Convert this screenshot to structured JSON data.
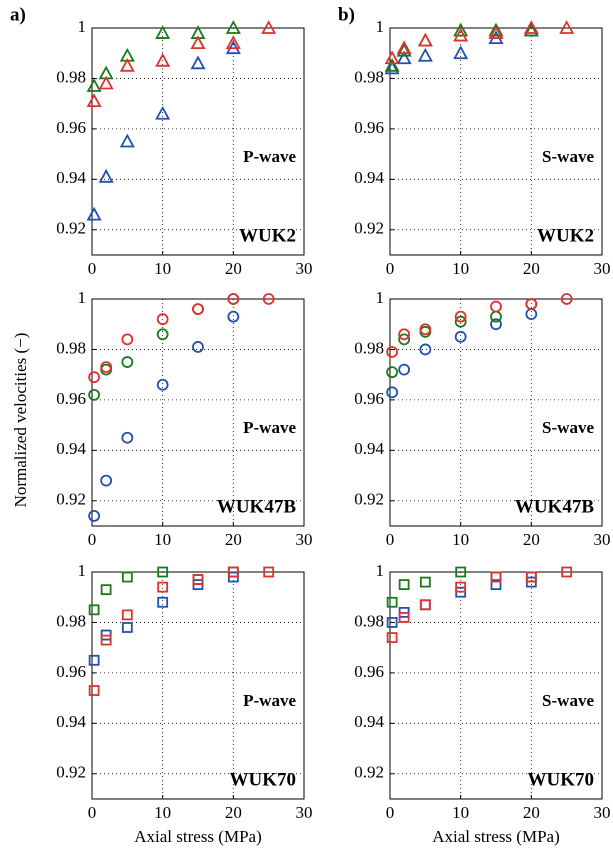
{
  "ylabel": "Normalized velocities (−)",
  "chart_data": [
    {
      "type": "scatter",
      "panel": "a)",
      "annotation": "P-wave",
      "sample": "WUK2",
      "marker": "triangle",
      "grid": true,
      "xlim": [
        0,
        30
      ],
      "ylim": [
        0.91,
        1
      ],
      "xticks": [
        0,
        10,
        20,
        30
      ],
      "yticks": [
        0.92,
        0.94,
        0.96,
        0.98,
        1
      ],
      "series": [
        {
          "color": "#2050b0",
          "x": [
            0.3,
            2,
            5,
            10,
            15,
            20
          ],
          "values": [
            0.926,
            0.941,
            0.955,
            0.966,
            0.986,
            0.992
          ]
        },
        {
          "color": "#1a7a1a",
          "x": [
            0.3,
            2,
            5,
            10,
            15,
            20
          ],
          "values": [
            0.977,
            0.982,
            0.989,
            0.998,
            0.998,
            1.0
          ]
        },
        {
          "color": "#e03030",
          "x": [
            0.3,
            2,
            5,
            10,
            15,
            20,
            25
          ],
          "values": [
            0.971,
            0.978,
            0.985,
            0.987,
            0.994,
            0.994,
            1.0
          ]
        }
      ]
    },
    {
      "type": "scatter",
      "panel": "b)",
      "annotation": "S-wave",
      "sample": "WUK2",
      "marker": "triangle",
      "grid": true,
      "xlim": [
        0,
        30
      ],
      "ylim": [
        0.91,
        1
      ],
      "xticks": [
        0,
        10,
        20,
        30
      ],
      "yticks": [
        0.92,
        0.94,
        0.96,
        0.98,
        1
      ],
      "series": [
        {
          "color": "#2050b0",
          "x": [
            0.3,
            2,
            5,
            10,
            15,
            20
          ],
          "values": [
            0.984,
            0.988,
            0.989,
            0.99,
            0.996,
            0.999
          ]
        },
        {
          "color": "#1a7a1a",
          "x": [
            0.3,
            2,
            5,
            10,
            15,
            20
          ],
          "values": [
            0.985,
            0.991,
            0.995,
            0.999,
            0.999,
            0.999
          ]
        },
        {
          "color": "#e03030",
          "x": [
            0.3,
            2,
            5,
            10,
            15,
            20,
            25
          ],
          "values": [
            0.988,
            0.992,
            0.995,
            0.997,
            0.998,
            1.0,
            1.0
          ]
        }
      ]
    },
    {
      "type": "scatter",
      "annotation": "P-wave",
      "sample": "WUK47B",
      "marker": "circle",
      "grid": true,
      "xlim": [
        0,
        30
      ],
      "ylim": [
        0.91,
        1
      ],
      "xticks": [
        0,
        10,
        20,
        30
      ],
      "yticks": [
        0.92,
        0.94,
        0.96,
        0.98,
        1
      ],
      "series": [
        {
          "color": "#2050b0",
          "x": [
            0.3,
            2,
            5,
            10,
            15,
            20
          ],
          "values": [
            0.914,
            0.928,
            0.945,
            0.966,
            0.981,
            0.993
          ]
        },
        {
          "color": "#1a7a1a",
          "x": [
            0.3,
            2,
            5,
            10,
            15,
            20
          ],
          "values": [
            0.962,
            0.972,
            0.975,
            0.986,
            0.996,
            1.0
          ]
        },
        {
          "color": "#e03030",
          "x": [
            0.3,
            2,
            5,
            10,
            15,
            20,
            25
          ],
          "values": [
            0.969,
            0.973,
            0.984,
            0.992,
            0.996,
            1.0,
            1.0
          ]
        }
      ]
    },
    {
      "type": "scatter",
      "annotation": "S-wave",
      "sample": "WUK47B",
      "marker": "circle",
      "grid": true,
      "xlim": [
        0,
        30
      ],
      "ylim": [
        0.91,
        1
      ],
      "xticks": [
        0,
        10,
        20,
        30
      ],
      "yticks": [
        0.92,
        0.94,
        0.96,
        0.98,
        1
      ],
      "series": [
        {
          "color": "#2050b0",
          "x": [
            0.3,
            2,
            5,
            10,
            15,
            20
          ],
          "values": [
            0.963,
            0.972,
            0.98,
            0.985,
            0.99,
            0.994
          ]
        },
        {
          "color": "#1a7a1a",
          "x": [
            0.3,
            2,
            5,
            10,
            15,
            20
          ],
          "values": [
            0.971,
            0.984,
            0.987,
            0.991,
            0.993,
            0.998
          ]
        },
        {
          "color": "#e03030",
          "x": [
            0.3,
            2,
            5,
            10,
            15,
            20,
            25
          ],
          "values": [
            0.979,
            0.986,
            0.988,
            0.993,
            0.997,
            0.998,
            1.0
          ]
        }
      ]
    },
    {
      "type": "scatter",
      "annotation": "P-wave",
      "sample": "WUK70",
      "marker": "square",
      "grid": true,
      "xlabel": "Axial stress (MPa)",
      "xlim": [
        0,
        30
      ],
      "ylim": [
        0.91,
        1
      ],
      "xticks": [
        0,
        10,
        20,
        30
      ],
      "yticks": [
        0.92,
        0.94,
        0.96,
        0.98,
        1
      ],
      "series": [
        {
          "color": "#2050b0",
          "x": [
            0.3,
            2,
            5,
            10,
            15,
            20
          ],
          "values": [
            0.965,
            0.975,
            0.978,
            0.988,
            0.995,
            0.998
          ]
        },
        {
          "color": "#1a7a1a",
          "x": [
            0.3,
            2,
            5,
            10,
            15,
            20
          ],
          "values": [
            0.985,
            0.993,
            0.998,
            1.0,
            0.997,
            1.0
          ]
        },
        {
          "color": "#e03030",
          "x": [
            0.3,
            2,
            5,
            10,
            15,
            20,
            25
          ],
          "values": [
            0.953,
            0.973,
            0.983,
            0.994,
            0.997,
            1.0,
            1.0
          ]
        }
      ]
    },
    {
      "type": "scatter",
      "annotation": "S-wave",
      "sample": "WUK70",
      "marker": "square",
      "grid": true,
      "xlabel": "Axial stress (MPa)",
      "xlim": [
        0,
        30
      ],
      "ylim": [
        0.91,
        1
      ],
      "xticks": [
        0,
        10,
        20,
        30
      ],
      "yticks": [
        0.92,
        0.94,
        0.96,
        0.98,
        1
      ],
      "series": [
        {
          "color": "#2050b0",
          "x": [
            0.3,
            2,
            5,
            10,
            15,
            20
          ],
          "values": [
            0.98,
            0.984,
            0.987,
            0.992,
            0.995,
            0.996
          ]
        },
        {
          "color": "#1a7a1a",
          "x": [
            0.3,
            2,
            5,
            10,
            15,
            20
          ],
          "values": [
            0.988,
            0.995,
            0.996,
            1.0,
            0.998,
            0.998
          ]
        },
        {
          "color": "#e03030",
          "x": [
            0.3,
            2,
            5,
            10,
            15,
            20,
            25
          ],
          "values": [
            0.974,
            0.982,
            0.987,
            0.994,
            0.998,
            0.998,
            1.0
          ]
        }
      ]
    }
  ]
}
